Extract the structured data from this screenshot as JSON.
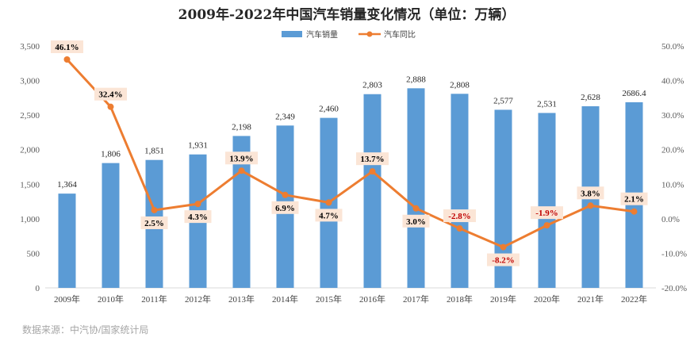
{
  "chart_data": {
    "type": "bar+line",
    "title": "2009年-2022年中国汽车销量变化情况（单位：万辆）",
    "categories": [
      "2009年",
      "2010年",
      "2011年",
      "2012年",
      "2013年",
      "2014年",
      "2015年",
      "2016年",
      "2017年",
      "2018年",
      "2019年",
      "2020年",
      "2021年",
      "2022年"
    ],
    "series": [
      {
        "name": "汽车销量",
        "kind": "bar",
        "axis": "left",
        "values": [
          1364,
          1806,
          1851,
          1931,
          2198,
          2349,
          2460,
          2803,
          2888,
          2808,
          2577,
          2531,
          2628,
          2686.4
        ],
        "labels": [
          "1,364",
          "1,806",
          "1,851",
          "1,931",
          "2,198",
          "2,349",
          "2,460",
          "2,803",
          "2,888",
          "2,808",
          "2,577",
          "2,531",
          "2,628",
          "2686.4"
        ]
      },
      {
        "name": "汽车同比",
        "kind": "line",
        "axis": "right",
        "values": [
          46.1,
          32.4,
          2.5,
          4.3,
          13.9,
          6.9,
          4.7,
          13.7,
          3.0,
          -2.8,
          -8.2,
          -1.9,
          3.8,
          2.1
        ],
        "labels": [
          "46.1%",
          "32.4%",
          "2.5%",
          "4.3%",
          "13.9%",
          "6.9%",
          "4.7%",
          "13.7%",
          "3.0%",
          "-2.8%",
          "-8.2%",
          "-1.9%",
          "3.8%",
          "2.1%"
        ]
      }
    ],
    "left_axis": {
      "ylim": [
        0,
        3500
      ],
      "ticks": [
        0,
        500,
        1000,
        1500,
        2000,
        2500,
        3000,
        3500
      ],
      "tick_labels": [
        "0",
        "500",
        "1,000",
        "1,500",
        "2,000",
        "2,500",
        "3,000",
        "3,500"
      ]
    },
    "right_axis": {
      "ylim": [
        -20,
        50
      ],
      "ticks": [
        -20,
        -10,
        0,
        10,
        20,
        30,
        40,
        50
      ],
      "tick_labels": [
        "-20.0%",
        "-10.0%",
        "0.0%",
        "10.0%",
        "20.0%",
        "30.0%",
        "40.0%",
        "50.0%"
      ]
    },
    "grid": false,
    "legend_position": "top-center",
    "colors": {
      "bar": "#5b9bd5",
      "line": "#ed7d31",
      "label_bg": "#fbe5d6",
      "positive_text": "#000000",
      "negative_text": "#c00000"
    }
  },
  "source": "数据来源：中汽协/国家统计局"
}
